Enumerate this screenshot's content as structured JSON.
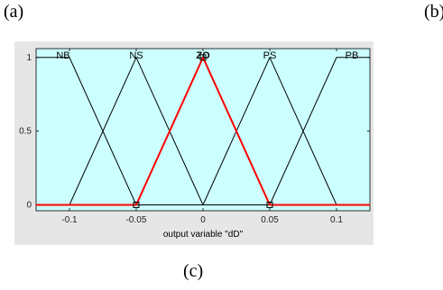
{
  "panel_labels": {
    "a": "(a)",
    "b": "(b)",
    "c": "(c)"
  },
  "chart_data": {
    "type": "line",
    "title": "",
    "xlabel": "output variable \"dD\"",
    "ylabel": "",
    "xlim": [
      -0.125,
      0.125
    ],
    "ylim": [
      0,
      1
    ],
    "x_ticks": [
      -0.1,
      -0.05,
      0,
      0.05,
      0.1
    ],
    "x_tick_labels": [
      "-0.1",
      "-0.05",
      "0",
      "0.05",
      "0.1"
    ],
    "y_ticks": [
      0,
      0.5,
      1
    ],
    "y_tick_labels": [
      "0",
      "0.5",
      "1"
    ],
    "grid": false,
    "colors": {
      "background": "#ccffff",
      "default_line": "#000000",
      "selected_line": "#ff0000"
    },
    "series": [
      {
        "name": "NB",
        "x": [
          -0.125,
          -0.1,
          -0.05,
          0.125
        ],
        "y": [
          1,
          1,
          0,
          0
        ],
        "selected": false
      },
      {
        "name": "NS",
        "x": [
          -0.125,
          -0.1,
          -0.05,
          0,
          0.125
        ],
        "y": [
          0,
          0,
          1,
          0,
          0
        ],
        "selected": false
      },
      {
        "name": "ZO",
        "x": [
          -0.125,
          -0.05,
          0,
          0.05,
          0.125
        ],
        "y": [
          0,
          0,
          1,
          0,
          0
        ],
        "selected": true
      },
      {
        "name": "PS",
        "x": [
          -0.125,
          0,
          0.05,
          0.1,
          0.125
        ],
        "y": [
          0,
          0,
          1,
          0,
          0
        ],
        "selected": false
      },
      {
        "name": "PB",
        "x": [
          -0.125,
          0.05,
          0.1,
          0.125
        ],
        "y": [
          0,
          0,
          1,
          1
        ],
        "selected": false
      }
    ]
  }
}
